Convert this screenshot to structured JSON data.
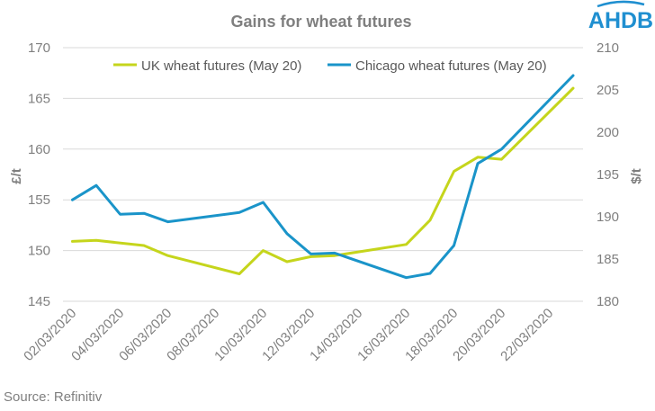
{
  "brand": {
    "logo_text": "AHDB",
    "logo_color": "#1f8fd0"
  },
  "source": "Source: Refinitiv",
  "chart_data": {
    "type": "line",
    "title": "Gains for wheat futures",
    "ylabel": "£/t",
    "y2label": "$/t",
    "ylim": [
      145,
      170
    ],
    "y2lim": [
      180,
      210
    ],
    "yticks": [
      145,
      150,
      155,
      160,
      165,
      170
    ],
    "y2ticks": [
      180,
      185,
      190,
      195,
      200,
      205,
      210
    ],
    "grid": "horizontal",
    "legend_position": "top",
    "x_tick_labels": [
      "02/03/2020",
      "04/03/2020",
      "06/03/2020",
      "08/03/2020",
      "10/03/2020",
      "12/03/2020",
      "14/03/2020",
      "16/03/2020",
      "18/03/2020",
      "20/03/2020",
      "22/03/2020"
    ],
    "series": [
      {
        "name": "UK wheat futures (May 20)",
        "axis": "left",
        "color": "#c5d51c",
        "points": [
          [
            "2020-03-02",
            150.9
          ],
          [
            "2020-03-03",
            151.0
          ],
          [
            "2020-03-05",
            150.5
          ],
          [
            "2020-03-06",
            149.5
          ],
          [
            "2020-03-09",
            147.7
          ],
          [
            "2020-03-10",
            150.0
          ],
          [
            "2020-03-11",
            148.9
          ],
          [
            "2020-03-12",
            149.4
          ],
          [
            "2020-03-13",
            149.5
          ],
          [
            "2020-03-16",
            150.6
          ],
          [
            "2020-03-17",
            153.0
          ],
          [
            "2020-03-18",
            157.8
          ],
          [
            "2020-03-19",
            159.2
          ],
          [
            "2020-03-20",
            159.0
          ],
          [
            "2020-03-23",
            166.0
          ]
        ]
      },
      {
        "name": "Chicago wheat futures (May 20)",
        "axis": "right",
        "color": "#1a94c9",
        "points": [
          [
            "2020-03-02",
            192.0
          ],
          [
            "2020-03-03",
            193.7
          ],
          [
            "2020-03-04",
            190.3
          ],
          [
            "2020-03-05",
            190.4
          ],
          [
            "2020-03-06",
            189.4
          ],
          [
            "2020-03-09",
            190.5
          ],
          [
            "2020-03-10",
            191.7
          ],
          [
            "2020-03-11",
            188.0
          ],
          [
            "2020-03-12",
            185.6
          ],
          [
            "2020-03-13",
            185.7
          ],
          [
            "2020-03-16",
            182.8
          ],
          [
            "2020-03-17",
            183.3
          ],
          [
            "2020-03-18",
            186.6
          ],
          [
            "2020-03-19",
            196.3
          ],
          [
            "2020-03-20",
            198.0
          ],
          [
            "2020-03-23",
            206.7
          ]
        ]
      }
    ]
  }
}
